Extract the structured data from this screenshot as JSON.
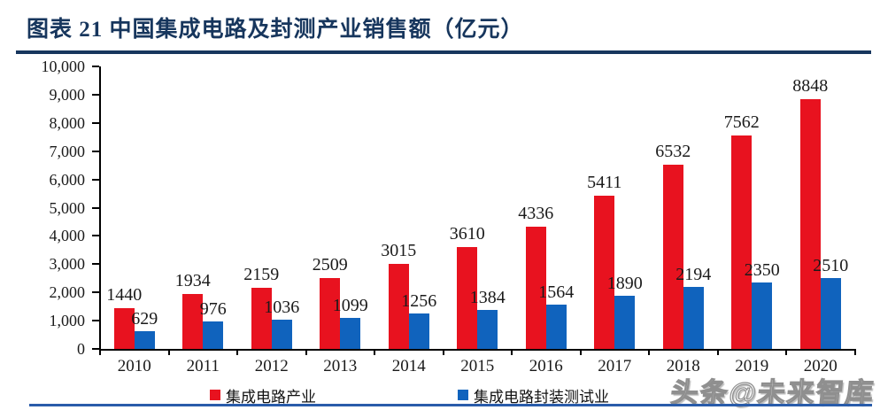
{
  "header": {
    "title": "图表 21  中国集成电路及封测产业销售额（亿元）"
  },
  "watermark": "头条@未来智库",
  "colors": {
    "title_navy": "#17365d",
    "bottom_rule_blue": "#2a5caa",
    "axis_black": "#000000",
    "value_label_black": "#1a1a1a",
    "watermark_gray": "#8f8f8f"
  },
  "chart_data": {
    "type": "bar",
    "title": "中国集成电路及封测产业销售额（亿元）",
    "xlabel": "",
    "ylabel": "",
    "ylim": [
      0,
      10000
    ],
    "ytick_step": 1000,
    "ytick_labels": [
      "0",
      "1,000",
      "2,000",
      "3,000",
      "4,000",
      "5,000",
      "6,000",
      "7,000",
      "8,000",
      "9,000",
      "10,000"
    ],
    "grid": false,
    "legend_position": "bottom",
    "bar_value_labels": true,
    "categories": [
      "2010",
      "2011",
      "2012",
      "2013",
      "2014",
      "2015",
      "2016",
      "2017",
      "2018",
      "2019",
      "2020"
    ],
    "series": [
      {
        "id": "ic-industry",
        "name": "集成电路产业",
        "color": "#e8121f",
        "values": [
          1440,
          1934,
          2159,
          2509,
          3015,
          3610,
          4336,
          5411,
          6532,
          7562,
          8848
        ]
      },
      {
        "id": "ic-packaging-testing",
        "name": "集成电路封装测试业",
        "color": "#1063bd",
        "values": [
          629,
          976,
          1036,
          1099,
          1256,
          1384,
          1564,
          1890,
          2194,
          2350,
          2510
        ]
      }
    ]
  }
}
